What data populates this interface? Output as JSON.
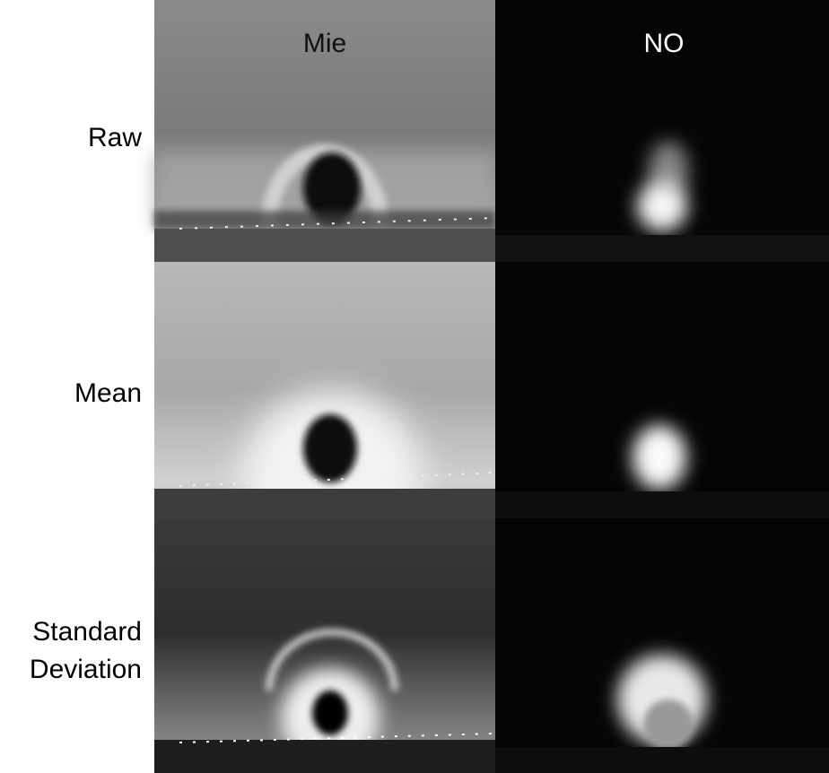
{
  "column_headers": [
    "Mie",
    "NO"
  ],
  "row_labels": [
    [
      "Raw"
    ],
    [
      "Mean"
    ],
    [
      "Standard",
      "Deviation"
    ]
  ]
}
